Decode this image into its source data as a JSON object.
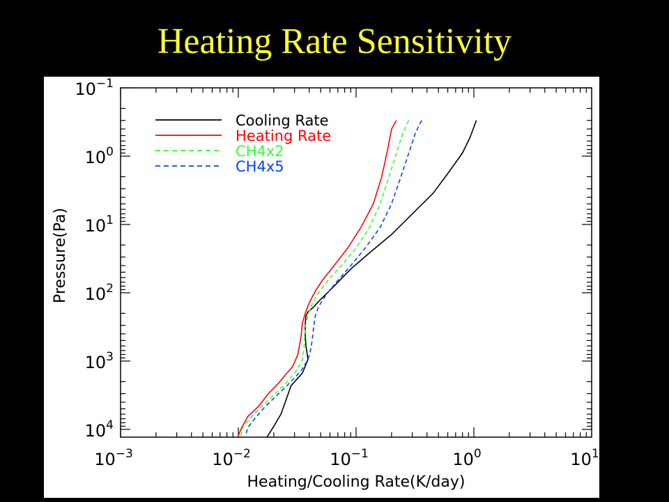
{
  "slide": {
    "title": "Heating Rate Sensitivity"
  },
  "colors": {
    "background": "#000000",
    "title": "#ffff33",
    "cooling": "#000000",
    "heating": "#ff0000",
    "ch4x2": "#33ff33",
    "ch4x5": "#0044ff"
  },
  "chart_data": {
    "type": "line",
    "title": "",
    "xlabel": "Heating/Cooling Rate(K/day)",
    "ylabel": "Pressure(Pa)",
    "x_scale": "log",
    "y_scale": "log",
    "y_inverted": true,
    "xlim": [
      0.001,
      10
    ],
    "ylim": [
      0.1,
      13000
    ],
    "x_ticks": [
      {
        "value": 0.001,
        "base": "10",
        "exp": "−3"
      },
      {
        "value": 0.01,
        "base": "10",
        "exp": "−2"
      },
      {
        "value": 0.1,
        "base": "10",
        "exp": "−1"
      },
      {
        "value": 1,
        "base": "10",
        "exp": "0"
      },
      {
        "value": 10,
        "base": "10",
        "exp": "1"
      }
    ],
    "y_ticks": [
      {
        "value": 0.1,
        "base": "10",
        "exp": "−1"
      },
      {
        "value": 1,
        "base": "10",
        "exp": "0"
      },
      {
        "value": 10,
        "base": "10",
        "exp": "1"
      },
      {
        "value": 100,
        "base": "10",
        "exp": "2"
      },
      {
        "value": 1000,
        "base": "10",
        "exp": "3"
      },
      {
        "value": 10000,
        "base": "10",
        "exp": "4"
      }
    ],
    "grid": false,
    "legend_position": "top-left",
    "series": [
      {
        "name": "Cooling Rate",
        "color": "#000000",
        "dash": "solid",
        "points": [
          [
            1.05,
            0.3
          ],
          [
            0.92,
            0.55
          ],
          [
            0.8,
            0.9
          ],
          [
            0.6,
            1.8
          ],
          [
            0.45,
            3.5
          ],
          [
            0.3,
            7
          ],
          [
            0.2,
            14
          ],
          [
            0.13,
            26
          ],
          [
            0.09,
            45
          ],
          [
            0.065,
            80
          ],
          [
            0.05,
            125
          ],
          [
            0.043,
            165
          ],
          [
            0.039,
            190
          ],
          [
            0.0375,
            220
          ],
          [
            0.037,
            280
          ],
          [
            0.037,
            420
          ],
          [
            0.0375,
            600
          ],
          [
            0.0385,
            800
          ],
          [
            0.039,
            950
          ],
          [
            0.035,
            1500
          ],
          [
            0.028,
            2300
          ],
          [
            0.025,
            4000
          ],
          [
            0.023,
            6000
          ],
          [
            0.02,
            9000
          ],
          [
            0.0175,
            13000
          ]
        ]
      },
      {
        "name": "Heating Rate",
        "color": "#ff0000",
        "dash": "solid",
        "points": [
          [
            0.22,
            0.3
          ],
          [
            0.2,
            0.4
          ],
          [
            0.185,
            0.8
          ],
          [
            0.165,
            2
          ],
          [
            0.14,
            5
          ],
          [
            0.11,
            11
          ],
          [
            0.085,
            22
          ],
          [
            0.065,
            40
          ],
          [
            0.052,
            65
          ],
          [
            0.045,
            95
          ],
          [
            0.04,
            140
          ],
          [
            0.037,
            200
          ],
          [
            0.035,
            280
          ],
          [
            0.0345,
            360
          ],
          [
            0.034,
            450
          ],
          [
            0.033,
            600
          ],
          [
            0.032,
            800
          ],
          [
            0.029,
            1200
          ],
          [
            0.025,
            1600
          ],
          [
            0.022,
            2100
          ],
          [
            0.018,
            3000
          ],
          [
            0.015,
            4500
          ],
          [
            0.012,
            6500
          ],
          [
            0.0105,
            10000
          ],
          [
            0.01,
            12500
          ]
        ]
      },
      {
        "name": "CH4x2",
        "color": "#33ff33",
        "dash": "dashed",
        "points": [
          [
            0.28,
            0.3
          ],
          [
            0.25,
            0.45
          ],
          [
            0.22,
            0.9
          ],
          [
            0.19,
            2
          ],
          [
            0.16,
            5
          ],
          [
            0.13,
            11
          ],
          [
            0.1,
            22
          ],
          [
            0.075,
            40
          ],
          [
            0.058,
            65
          ],
          [
            0.048,
            100
          ],
          [
            0.042,
            150
          ],
          [
            0.039,
            210
          ],
          [
            0.037,
            320
          ],
          [
            0.0365,
            480
          ],
          [
            0.036,
            680
          ],
          [
            0.035,
            950
          ],
          [
            0.031,
            1400
          ],
          [
            0.026,
            2000
          ],
          [
            0.021,
            2900
          ],
          [
            0.016,
            4500
          ],
          [
            0.013,
            6500
          ],
          [
            0.011,
            9000
          ],
          [
            0.0105,
            12500
          ]
        ]
      },
      {
        "name": "CH4x5",
        "color": "#0044ff",
        "dash": "dashed",
        "points": [
          [
            0.36,
            0.3
          ],
          [
            0.32,
            0.45
          ],
          [
            0.28,
            0.9
          ],
          [
            0.24,
            2
          ],
          [
            0.2,
            5
          ],
          [
            0.16,
            11
          ],
          [
            0.12,
            22
          ],
          [
            0.09,
            40
          ],
          [
            0.068,
            70
          ],
          [
            0.055,
            110
          ],
          [
            0.048,
            160
          ],
          [
            0.045,
            220
          ],
          [
            0.0435,
            330
          ],
          [
            0.0425,
            480
          ],
          [
            0.041,
            700
          ],
          [
            0.039,
            950
          ],
          [
            0.034,
            1400
          ],
          [
            0.028,
            2000
          ],
          [
            0.022,
            3000
          ],
          [
            0.017,
            4600
          ],
          [
            0.014,
            6700
          ],
          [
            0.012,
            9500
          ],
          [
            0.0115,
            12500
          ]
        ]
      }
    ]
  }
}
